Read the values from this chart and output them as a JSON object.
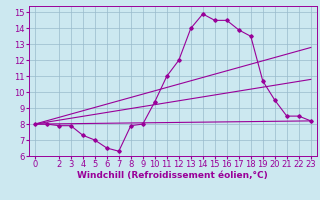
{
  "xlabel": "Windchill (Refroidissement éolien,°C)",
  "bg_color": "#cce8f0",
  "line_color": "#990099",
  "grid_color": "#99bbcc",
  "xlim": [
    -0.5,
    23.5
  ],
  "ylim": [
    6,
    15.4
  ],
  "xticks": [
    0,
    2,
    3,
    4,
    5,
    6,
    7,
    8,
    9,
    10,
    11,
    12,
    13,
    14,
    15,
    16,
    17,
    18,
    19,
    20,
    21,
    22,
    23
  ],
  "yticks": [
    6,
    7,
    8,
    9,
    10,
    11,
    12,
    13,
    14,
    15
  ],
  "line1_x": [
    0,
    1,
    2,
    3,
    4,
    5,
    6,
    7,
    8,
    9,
    10,
    11,
    12,
    13,
    14,
    15,
    16,
    17,
    18,
    19,
    20,
    21,
    22,
    23
  ],
  "line1_y": [
    8.0,
    8.0,
    7.9,
    7.9,
    7.3,
    7.0,
    6.5,
    6.3,
    7.9,
    8.0,
    9.4,
    11.0,
    12.0,
    14.0,
    14.9,
    14.5,
    14.5,
    13.9,
    13.5,
    10.7,
    9.5,
    8.5,
    8.5,
    8.2
  ],
  "line2_x": [
    0,
    23
  ],
  "line2_y": [
    8.0,
    8.2
  ],
  "line3_x": [
    0,
    23
  ],
  "line3_y": [
    8.0,
    10.8
  ],
  "line4_x": [
    0,
    23
  ],
  "line4_y": [
    8.0,
    12.8
  ],
  "xlabel_fontsize": 6.5,
  "tick_fontsize": 6.0
}
